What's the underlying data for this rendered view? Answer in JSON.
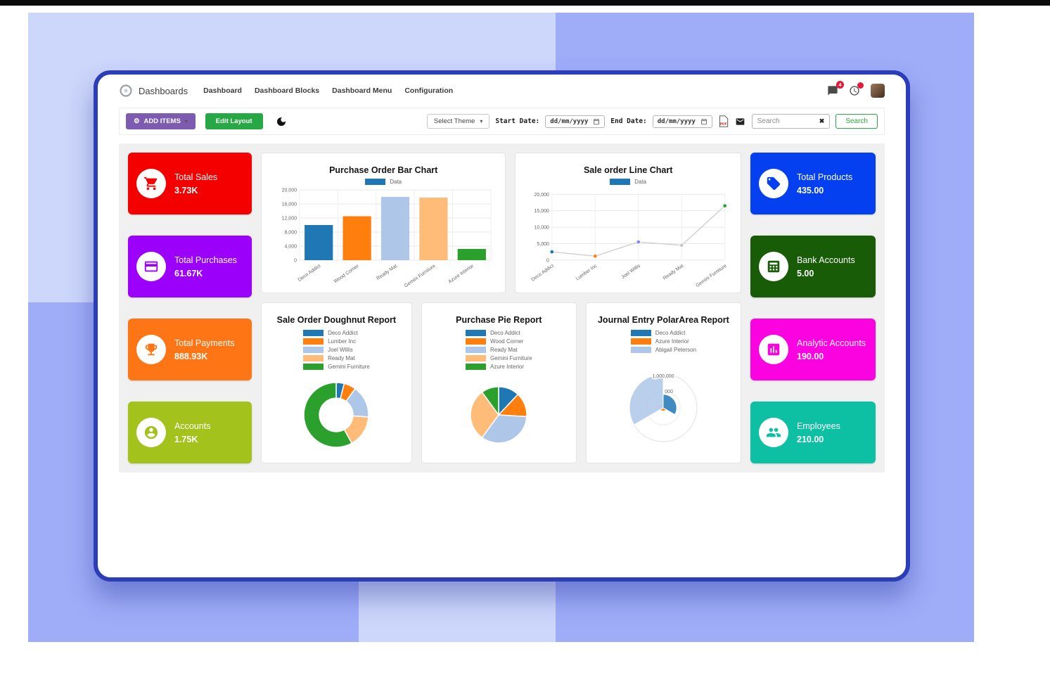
{
  "navbar": {
    "app_name": "Dashboards",
    "menu": [
      "Dashboard",
      "Dashboard Blocks",
      "Dashboard Menu",
      "Configuration"
    ],
    "messages_badge": "4"
  },
  "toolbar": {
    "add_items": "ADD ITEMS",
    "edit_layout": "Edit Layout",
    "select_theme": "Select Theme",
    "start_date_label": "Start Date:",
    "end_date_label": "End Date:",
    "date_placeholder": "dd/mm/yyyy",
    "search_placeholder": "Search",
    "search_button": "Search"
  },
  "kpis_left": [
    {
      "title": "Total Sales",
      "value": "3.73K",
      "color": "#f50000",
      "icon": "cart-icon"
    },
    {
      "title": "Total Purchases",
      "value": "61.67K",
      "color": "#9b00fa",
      "icon": "credit-card-icon"
    },
    {
      "title": "Total Payments",
      "value": "888.93K",
      "color": "#fd7514",
      "icon": "trophy-icon"
    },
    {
      "title": "Accounts",
      "value": "1.75K",
      "color": "#a3c21c",
      "icon": "user-icon"
    }
  ],
  "kpis_right": [
    {
      "title": "Total Products",
      "value": "435.00",
      "color": "#0540f0",
      "icon": "tag-icon"
    },
    {
      "title": "Bank Accounts",
      "value": "5.00",
      "color": "#185c07",
      "icon": "calculator-icon"
    },
    {
      "title": "Analytic Accounts",
      "value": "190.00",
      "color": "#fb02e0",
      "icon": "bar-chart-icon"
    },
    {
      "title": "Employees",
      "value": "210.00",
      "color": "#0dbfa3",
      "icon": "people-icon"
    }
  ],
  "chart_data": [
    {
      "type": "bar",
      "title": "Purchase Order Bar Chart",
      "legend": [
        "Data"
      ],
      "legend_color": "#1f77b4",
      "categories": [
        "Deco Addict",
        "Wood Corner",
        "Ready Mat",
        "Gemini Furniture",
        "Azure Interior"
      ],
      "values": [
        10000,
        12500,
        18000,
        17800,
        3200
      ],
      "colors": [
        "#1f77b4",
        "#ff7f0e",
        "#aec7e8",
        "#ffbb78",
        "#2ca02c"
      ],
      "yticks": [
        0,
        4000,
        8000,
        12000,
        16000,
        20000
      ],
      "ylim": [
        0,
        20000
      ],
      "xlabel": "",
      "ylabel": "",
      "grid": true,
      "legend_position": "top"
    },
    {
      "type": "line",
      "title": "Sale order Line Chart",
      "legend": [
        "Data"
      ],
      "legend_color": "#1f77b4",
      "categories": [
        "Deco Addict",
        "Lumber Inc",
        "Joel Willis",
        "Ready Mat",
        "Gemini Furniture"
      ],
      "values": [
        2500,
        1200,
        5500,
        4500,
        16500
      ],
      "point_colors": [
        "#1f77b4",
        "#ff7f0e",
        "#8c8cd9",
        "#c7c7c7",
        "#2ca02c"
      ],
      "line_color": "#cccccc",
      "yticks": [
        0,
        5000,
        10000,
        15000,
        20000
      ],
      "ylim": [
        0,
        20000
      ],
      "xlabel": "",
      "ylabel": "",
      "grid": true,
      "legend_position": "top"
    },
    {
      "type": "doughnut",
      "title": "Sale Order Doughnut Report",
      "labels": [
        "Deco Addict",
        "Lumber Inc",
        "Joel Willis",
        "Ready Mat",
        "Gemini Furniture"
      ],
      "values": [
        4,
        6,
        16,
        16,
        58
      ],
      "colors": [
        "#1f77b4",
        "#ff7f0e",
        "#aec7e8",
        "#ffbb78",
        "#2ca02c"
      ],
      "legend_position": "top"
    },
    {
      "type": "pie",
      "title": "Purchase Pie Report",
      "labels": [
        "Deco Addict",
        "Wood Corner",
        "Ready Mat",
        "Gemini Furniture",
        "Azure Interior"
      ],
      "values": [
        12,
        14,
        34,
        30,
        10
      ],
      "colors": [
        "#1f77b4",
        "#ff7f0e",
        "#aec7e8",
        "#ffbb78",
        "#2ca02c"
      ],
      "legend_position": "top"
    },
    {
      "type": "polarArea",
      "title": "Journal Entry PolarArea Report",
      "labels": [
        "Deco Addict",
        "Azure Interior",
        "Abigail Peterson"
      ],
      "values": [
        400000,
        100000,
        1000000
      ],
      "colors": [
        "#1f77b4",
        "#ff7f0e",
        "#aec7e8"
      ],
      "axis_max": 1000000,
      "tick_labels": [
        "1,000,000",
        "000"
      ],
      "legend_position": "top"
    }
  ]
}
